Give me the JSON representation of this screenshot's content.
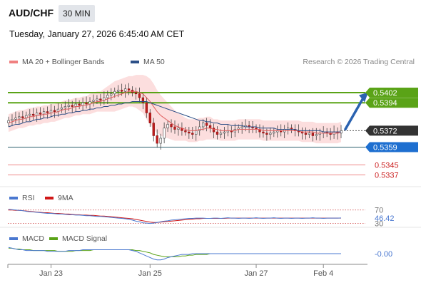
{
  "header": {
    "symbol": "AUD/CHF",
    "timeframe": "30 MIN",
    "datetime": "Tuesday, January 27, 2026 6:45:40 AM CET"
  },
  "chart_data": [
    {
      "type": "line",
      "panel": "price",
      "credit": "Research © 2026 Trading Central",
      "legend": [
        {
          "name": "MA 20 + Bollinger Bands",
          "color": "#f08080"
        },
        {
          "name": "MA 50",
          "color": "#2c4f87"
        }
      ],
      "ylim": [
        0.533,
        0.542
      ],
      "close": [
        0.538,
        0.5381,
        0.5382,
        0.5383,
        0.5382,
        0.5384,
        0.5385,
        0.5384,
        0.5386,
        0.5385,
        0.5387,
        0.5386,
        0.5388,
        0.5387,
        0.5389,
        0.539,
        0.5391,
        0.5392,
        0.5391,
        0.5393,
        0.5392,
        0.5394,
        0.5393,
        0.5395,
        0.5396,
        0.5397,
        0.5396,
        0.5398,
        0.54,
        0.5401,
        0.5403,
        0.5404,
        0.5403,
        0.5405,
        0.5404,
        0.5402,
        0.5401,
        0.5398,
        0.5394,
        0.5386,
        0.5378,
        0.5368,
        0.5362,
        0.5366,
        0.5374,
        0.5377,
        0.5375,
        0.5373,
        0.5374,
        0.5372,
        0.5371,
        0.537,
        0.5369,
        0.5372,
        0.5375,
        0.5378,
        0.5376,
        0.5374,
        0.5371,
        0.5369,
        0.537,
        0.5371,
        0.5372,
        0.5371,
        0.5373,
        0.5374,
        0.5375,
        0.5376,
        0.5375,
        0.5374,
        0.5373,
        0.5371,
        0.537,
        0.5369,
        0.537,
        0.5371,
        0.5372,
        0.5371,
        0.5373,
        0.5374,
        0.5373,
        0.5372,
        0.5371,
        0.537,
        0.5369,
        0.537,
        0.5368,
        0.5369,
        0.537,
        0.5371,
        0.537,
        0.5369,
        0.5371,
        0.537,
        0.5372
      ],
      "ma20": [
        0.5378,
        0.5379,
        0.538,
        0.5381,
        0.5381,
        0.5382,
        0.5383,
        0.5383,
        0.5384,
        0.5384,
        0.5385,
        0.5385,
        0.5386,
        0.5386,
        0.5387,
        0.5388,
        0.5389,
        0.5389,
        0.539,
        0.5391,
        0.5391,
        0.5392,
        0.5392,
        0.5393,
        0.5394,
        0.5395,
        0.5395,
        0.5396,
        0.5397,
        0.5398,
        0.5399,
        0.54,
        0.5401,
        0.5402,
        0.5403,
        0.5403,
        0.5403,
        0.5402,
        0.5401,
        0.5398,
        0.5395,
        0.5391,
        0.5387,
        0.5384,
        0.5382,
        0.538,
        0.5378,
        0.5376,
        0.5375,
        0.5374,
        0.5373,
        0.5372,
        0.5372,
        0.5372,
        0.5373,
        0.5373,
        0.5374,
        0.5374,
        0.5373,
        0.5373,
        0.5372,
        0.5372,
        0.5372,
        0.5372,
        0.5372,
        0.5373,
        0.5373,
        0.5373,
        0.5373,
        0.5373,
        0.5373,
        0.5373,
        0.5372,
        0.5372,
        0.5372,
        0.5372,
        0.5372,
        0.5372,
        0.5372,
        0.5372,
        0.5372,
        0.5372,
        0.5372,
        0.5371,
        0.5371,
        0.5371,
        0.5371,
        0.537,
        0.537,
        0.537,
        0.537,
        0.537,
        0.537,
        0.537,
        0.5371
      ],
      "bb_width": [
        0.0007,
        0.0007,
        0.0007,
        0.0007,
        0.0007,
        0.0007,
        0.0007,
        0.0007,
        0.0007,
        0.0007,
        0.0007,
        0.0007,
        0.0007,
        0.0007,
        0.0007,
        0.0007,
        0.0007,
        0.0007,
        0.0007,
        0.0007,
        0.0007,
        0.0007,
        0.0007,
        0.0008,
        0.0008,
        0.0008,
        0.0008,
        0.0009,
        0.001,
        0.0011,
        0.0012,
        0.0012,
        0.0012,
        0.0012,
        0.0012,
        0.0012,
        0.0013,
        0.0014,
        0.0015,
        0.0017,
        0.0018,
        0.0018,
        0.0017,
        0.0016,
        0.0015,
        0.0014,
        0.0013,
        0.0012,
        0.0011,
        0.001,
        0.0009,
        0.0009,
        0.0009,
        0.0009,
        0.0009,
        0.0009,
        0.0009,
        0.0009,
        0.0008,
        0.0008,
        0.0008,
        0.0008,
        0.0008,
        0.0008,
        0.0008,
        0.0008,
        0.0008,
        0.0008,
        0.0008,
        0.0008,
        0.0008,
        0.0008,
        0.0008,
        0.0008,
        0.0008,
        0.0008,
        0.0008,
        0.0008,
        0.0008,
        0.0008,
        0.0008,
        0.0008,
        0.0008,
        0.0008,
        0.0008,
        0.0008,
        0.0008,
        0.0008,
        0.0008,
        0.0008,
        0.0008,
        0.0008,
        0.0008,
        0.0008,
        0.0008
      ],
      "ma50": [
        0.5375,
        0.5376,
        0.5377,
        0.5377,
        0.5378,
        0.5379,
        0.5379,
        0.538,
        0.5381,
        0.5381,
        0.5382,
        0.5382,
        0.5383,
        0.5384,
        0.5384,
        0.5385,
        0.5385,
        0.5386,
        0.5386,
        0.5387,
        0.5387,
        0.5388,
        0.5388,
        0.5389,
        0.5389,
        0.539,
        0.539,
        0.5391,
        0.5391,
        0.5392,
        0.5392,
        0.5393,
        0.5393,
        0.5394,
        0.5394,
        0.5395,
        0.5395,
        0.5395,
        0.5395,
        0.5395,
        0.5394,
        0.5393,
        0.5392,
        0.5391,
        0.539,
        0.5389,
        0.5388,
        0.5387,
        0.5386,
        0.5385,
        0.5384,
        0.5383,
        0.5382,
        0.5381,
        0.538,
        0.538,
        0.5379,
        0.5379,
        0.5378,
        0.5378,
        0.5377,
        0.5377,
        0.5377,
        0.5376,
        0.5376,
        0.5376,
        0.5376,
        0.5375,
        0.5375,
        0.5375,
        0.5375,
        0.5374,
        0.5374,
        0.5374,
        0.5374,
        0.5374,
        0.5373,
        0.5373,
        0.5373,
        0.5373,
        0.5373,
        0.5373,
        0.5372,
        0.5372,
        0.5372,
        0.5372,
        0.5372,
        0.5372,
        0.5372,
        0.5371,
        0.5371,
        0.5371,
        0.5371,
        0.5371,
        0.5371
      ],
      "levels": [
        {
          "value": 0.5402,
          "label": "0.5402",
          "kind": "resistance",
          "color": "#5aa317"
        },
        {
          "value": 0.5394,
          "label": "0.5394",
          "kind": "resistance",
          "color": "#5aa317"
        },
        {
          "value": 0.5372,
          "label": "0.5372",
          "kind": "last",
          "color": "#333333"
        },
        {
          "value": 0.5359,
          "label": "0.5359",
          "kind": "pivot",
          "color": "#1e6fd0"
        },
        {
          "value": 0.5345,
          "label": "0.5345",
          "kind": "support",
          "color": "#cc2222"
        },
        {
          "value": 0.5337,
          "label": "0.5337",
          "kind": "support",
          "color": "#cc2222"
        }
      ],
      "forecast": {
        "direction": "up",
        "from": 0.5372,
        "to": 0.54
      }
    },
    {
      "type": "line",
      "panel": "rsi",
      "legend": [
        {
          "name": "RSI",
          "color": "#4a78d0"
        },
        {
          "name": "9MA",
          "color": "#d01818"
        }
      ],
      "ylim": [
        25,
        80
      ],
      "ticks": [
        {
          "value": 70,
          "label": "70"
        },
        {
          "value": 30,
          "label": "30"
        }
      ],
      "last_label": "46.42",
      "rsi": [
        72,
        71,
        70,
        69,
        68,
        66,
        65,
        64,
        63,
        62,
        61,
        60,
        60,
        59,
        58,
        58,
        57,
        56,
        56,
        55,
        55,
        54,
        53,
        53,
        52,
        51,
        51,
        50,
        49,
        48,
        47,
        46,
        45,
        44,
        42,
        40,
        37,
        35,
        32,
        31,
        30,
        31,
        33,
        35,
        37,
        38,
        40,
        41,
        42,
        43,
        44,
        45,
        45,
        46,
        46,
        46,
        45,
        45,
        46,
        46,
        45,
        46,
        47,
        46,
        46,
        45,
        46,
        46,
        45,
        46,
        47,
        46,
        45,
        46,
        46,
        47,
        46,
        45,
        46,
        46,
        45,
        46,
        46,
        45,
        46,
        46,
        47,
        46,
        46,
        45,
        46,
        46,
        46,
        46,
        46.4
      ],
      "ma9": [
        70,
        70,
        69,
        69,
        68,
        67,
        66,
        65,
        64,
        63,
        62,
        62,
        61,
        60,
        60,
        59,
        58,
        58,
        57,
        56,
        56,
        55,
        55,
        54,
        54,
        53,
        52,
        52,
        51,
        50,
        49,
        48,
        47,
        46,
        45,
        44,
        42,
        40,
        38,
        36,
        34,
        33,
        33,
        34,
        35,
        36,
        37,
        38,
        39,
        40,
        41,
        42,
        43,
        44,
        44,
        45,
        45,
        45,
        45,
        45,
        45,
        45,
        46,
        46,
        46,
        46,
        46,
        46,
        46,
        46,
        46,
        46,
        46,
        46,
        46,
        46,
        46,
        46,
        46,
        46,
        46,
        46,
        46,
        46,
        46,
        46,
        46,
        46,
        46,
        46,
        46,
        46,
        46,
        46,
        46
      ]
    },
    {
      "type": "line",
      "panel": "macd",
      "legend": [
        {
          "name": "MACD",
          "color": "#4a78d0"
        },
        {
          "name": "MACD Signal",
          "color": "#5aa317"
        }
      ],
      "ylim": [
        -0.0012,
        0.001
      ],
      "last_label": "-0.00",
      "macd": [
        0.0007,
        0.0006,
        0.0005,
        0.0004,
        0.0004,
        0.0003,
        0.0003,
        0.0003,
        0.0003,
        0.0003,
        0.0003,
        0.0002,
        0.0002,
        0.0002,
        0.0002,
        0.0002,
        0.0002,
        0.0003,
        0.0003,
        0.0003,
        0.0003,
        0.0004,
        0.0004,
        0.0004,
        0.0004,
        0.0004,
        0.0004,
        0.0004,
        0.0004,
        0.0004,
        0.0004,
        0.0004,
        0.0004,
        0.0004,
        0.0004,
        0.0003,
        0.0002,
        0.0,
        -0.0002,
        -0.0004,
        -0.0006,
        -0.0008,
        -0.0009,
        -0.0009,
        -0.0008,
        -0.0006,
        -0.0005,
        -0.0004,
        -0.0003,
        -0.0002,
        -0.0002,
        -0.0002,
        -0.0001,
        -0.0001,
        -0.0001,
        -0.0001,
        -0.0001,
        -0.0001,
        -0.0001,
        -0.0001,
        -0.0001,
        -0.0001,
        -0.0001,
        -0.0001,
        -0.0001,
        -0.0001,
        -0.0001,
        -0.0001,
        -0.0001,
        -0.0001,
        -0.0001,
        -0.0001,
        -0.0001,
        -0.0001,
        -0.0001,
        -0.0001,
        -0.0001,
        -0.0001,
        -0.0001,
        -0.0001,
        -0.0001,
        -0.0001,
        -0.0001,
        -0.0001,
        -0.0001,
        -0.0001,
        -0.0001,
        -0.0001,
        -0.0001,
        -0.0001,
        -0.0001,
        -0.0001,
        -0.0001,
        -0.0001,
        -0.0001
      ],
      "signal": [
        0.0006,
        0.0006,
        0.0005,
        0.0005,
        0.0004,
        0.0004,
        0.0004,
        0.0003,
        0.0003,
        0.0003,
        0.0003,
        0.0003,
        0.0003,
        0.0003,
        0.0002,
        0.0002,
        0.0002,
        0.0002,
        0.0002,
        0.0003,
        0.0003,
        0.0003,
        0.0003,
        0.0003,
        0.0004,
        0.0004,
        0.0004,
        0.0004,
        0.0004,
        0.0004,
        0.0004,
        0.0004,
        0.0004,
        0.0004,
        0.0004,
        0.0004,
        0.0003,
        0.0003,
        0.0002,
        0.0001,
        0.0,
        -0.0002,
        -0.0003,
        -0.0004,
        -0.0005,
        -0.0005,
        -0.0005,
        -0.0005,
        -0.0005,
        -0.0004,
        -0.0004,
        -0.0003,
        -0.0003,
        -0.0002,
        -0.0002,
        -0.0002,
        -0.0002,
        -0.0001,
        -0.0001,
        -0.0001,
        -0.0001,
        -0.0001,
        -0.0001,
        -0.0001,
        -0.0001,
        -0.0001,
        -0.0001,
        -0.0001,
        -0.0001,
        -0.0001,
        -0.0001,
        -0.0001,
        -0.0001,
        -0.0001,
        -0.0001,
        -0.0001,
        -0.0001,
        -0.0001,
        -0.0001,
        -0.0001,
        -0.0001,
        -0.0001,
        -0.0001,
        -0.0001,
        -0.0001,
        -0.0001,
        -0.0001,
        -0.0001,
        -0.0001,
        -0.0001,
        -0.0001,
        -0.0001,
        -0.0001,
        -0.0001,
        -0.0001
      ]
    }
  ],
  "x_axis": {
    "ticks": [
      {
        "label": "Jan 23",
        "index": 12
      },
      {
        "label": "Jan 25",
        "index": 40
      },
      {
        "label": "Jan 27",
        "index": 70
      },
      {
        "label": "Feb 4",
        "index": 89
      }
    ],
    "count": 95
  }
}
